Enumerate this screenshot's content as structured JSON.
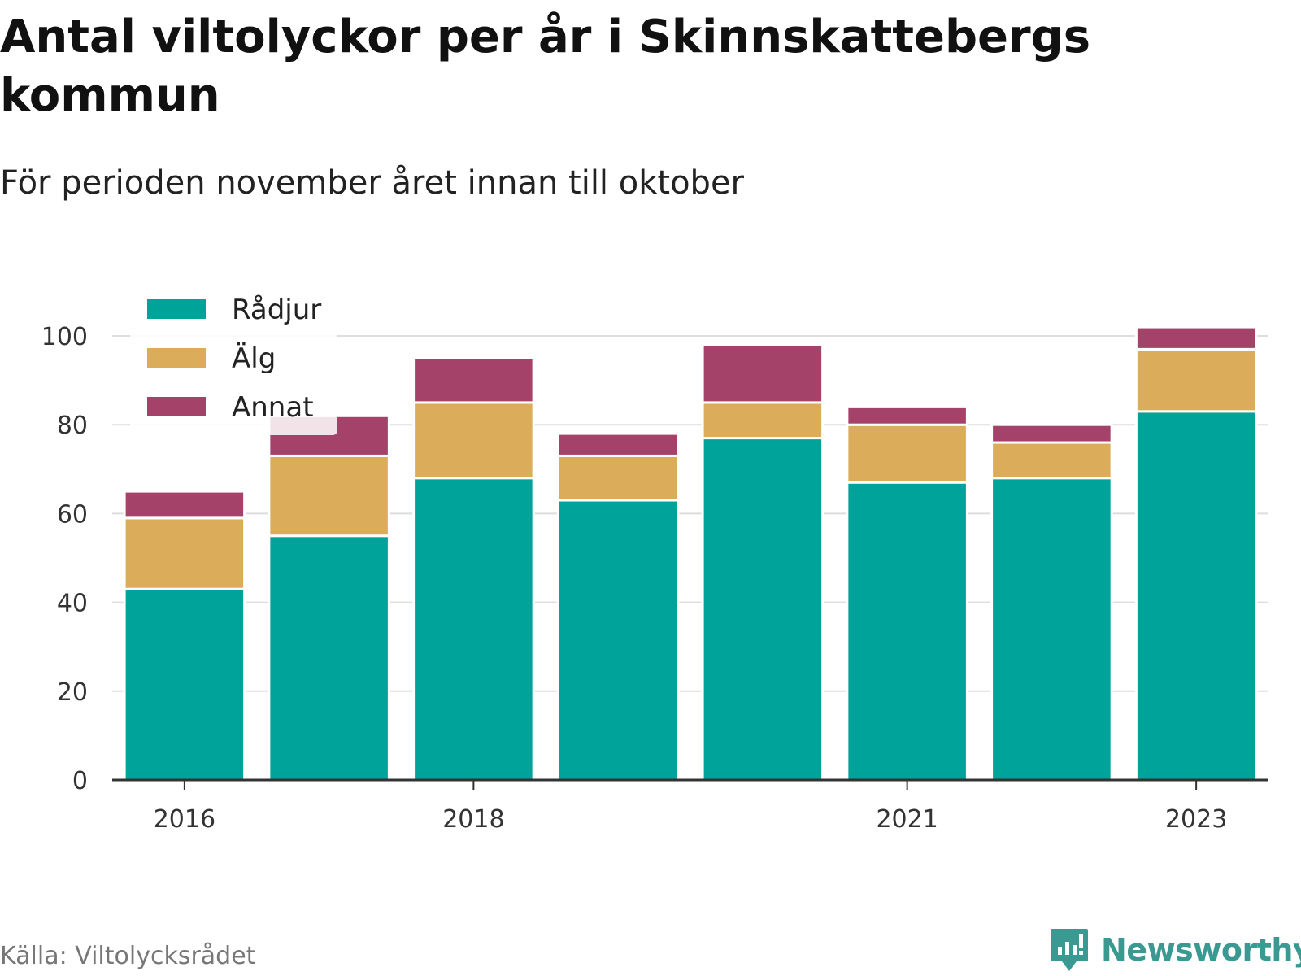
{
  "title": "Antal viltolyckor per år i Skinnskattebergs kommun",
  "subtitle": "För perioden november året innan till oktober",
  "source": "Källa: Viltolycksrådet",
  "brand": "Newsworthy",
  "colors": {
    "Rådjur": "#00a39a",
    "Älg": "#dbad5b",
    "Annat": "#a5426a",
    "grid": "#dddddd",
    "axis": "#333333"
  },
  "chart_data": {
    "type": "bar",
    "stacked": true,
    "categories": [
      "2016",
      "2017",
      "2018",
      "2019",
      "2020",
      "2021",
      "2022",
      "2023"
    ],
    "x_tick_labels": [
      "2016",
      "2018",
      "2021",
      "2023"
    ],
    "series": [
      {
        "name": "Rådjur",
        "values": [
          43,
          55,
          68,
          63,
          77,
          67,
          68,
          83
        ]
      },
      {
        "name": "Älg",
        "values": [
          16,
          18,
          17,
          10,
          8,
          13,
          8,
          14
        ]
      },
      {
        "name": "Annat",
        "values": [
          6,
          9,
          10,
          5,
          13,
          4,
          4,
          5
        ]
      }
    ],
    "ylim": [
      0,
      100
    ],
    "yticks": [
      0,
      20,
      40,
      60,
      80,
      100
    ],
    "xlabel": "",
    "ylabel": "",
    "grid": true,
    "legend_position": "top-left"
  }
}
